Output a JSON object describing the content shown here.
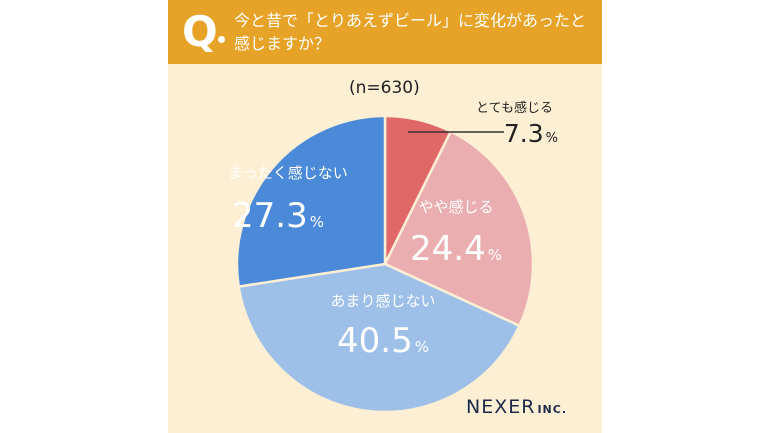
{
  "question": {
    "mark": "Q",
    "text": "今と昔で「とりあえずビール」に変化があったと感じますか？"
  },
  "sample_size": "(n=630)",
  "brand": {
    "name": "NEXER",
    "suffix": "INC."
  },
  "chart_data": {
    "type": "pie",
    "unit": "%",
    "slices": [
      {
        "label": "とても感じる",
        "value": 7.3,
        "color": "#e06869"
      },
      {
        "label": "やや感じる",
        "value": 24.4,
        "color": "#ebaeb0"
      },
      {
        "label": "あまり感じない",
        "value": 40.5,
        "color": "#9dbfe8"
      },
      {
        "label": "まったく感じない",
        "value": 27.3,
        "color": "#4a8ad8"
      }
    ]
  }
}
